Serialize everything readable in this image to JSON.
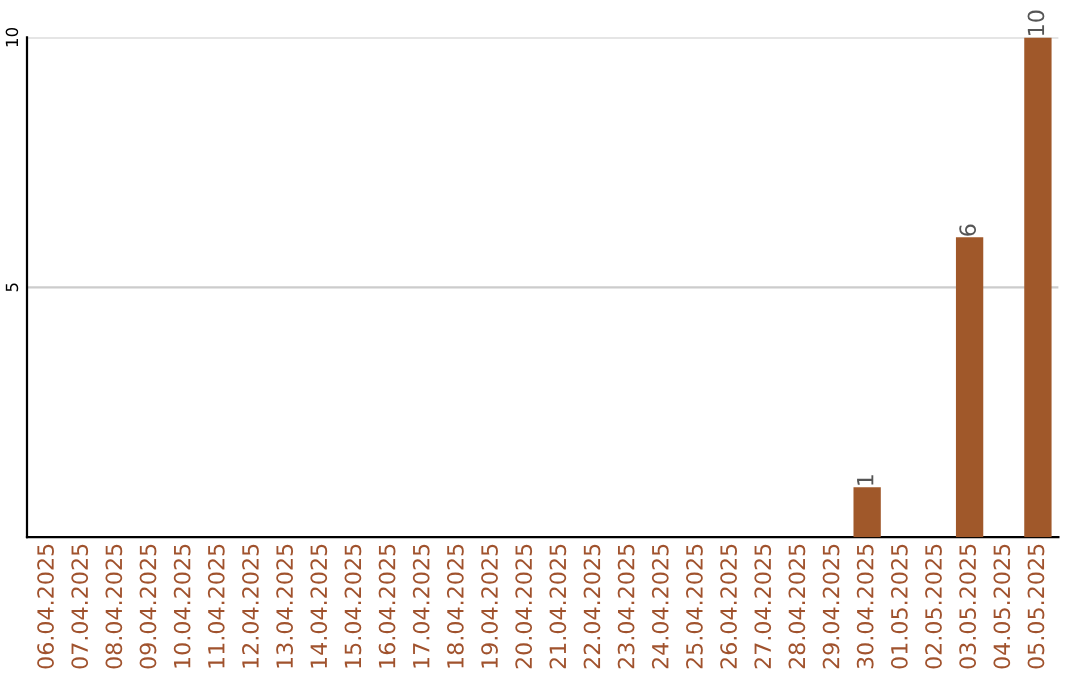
{
  "chart_data": {
    "type": "bar",
    "categories": [
      "06.04.2025",
      "07.04.2025",
      "08.04.2025",
      "09.04.2025",
      "10.04.2025",
      "11.04.2025",
      "12.04.2025",
      "13.04.2025",
      "14.04.2025",
      "15.04.2025",
      "16.04.2025",
      "17.04.2025",
      "18.04.2025",
      "19.04.2025",
      "20.04.2025",
      "21.04.2025",
      "22.04.2025",
      "23.04.2025",
      "24.04.2025",
      "25.04.2025",
      "26.04.2025",
      "27.04.2025",
      "28.04.2025",
      "29.04.2025",
      "30.04.2025",
      "01.05.2025",
      "02.05.2025",
      "03.05.2025",
      "04.05.2025",
      "05.05.2025"
    ],
    "values": [
      0,
      0,
      0,
      0,
      0,
      0,
      0,
      0,
      0,
      0,
      0,
      0,
      0,
      0,
      0,
      0,
      0,
      0,
      0,
      0,
      0,
      0,
      0,
      0,
      1,
      0,
      0,
      6,
      0,
      10
    ],
    "value_labels": [
      null,
      null,
      null,
      null,
      null,
      null,
      null,
      null,
      null,
      null,
      null,
      null,
      null,
      null,
      null,
      null,
      null,
      null,
      null,
      null,
      null,
      null,
      null,
      null,
      "1",
      null,
      null,
      "6",
      null,
      "10"
    ],
    "color": "#a0582a",
    "ylim": [
      0,
      10
    ],
    "yticks": [
      5,
      10
    ],
    "grid": "y"
  }
}
